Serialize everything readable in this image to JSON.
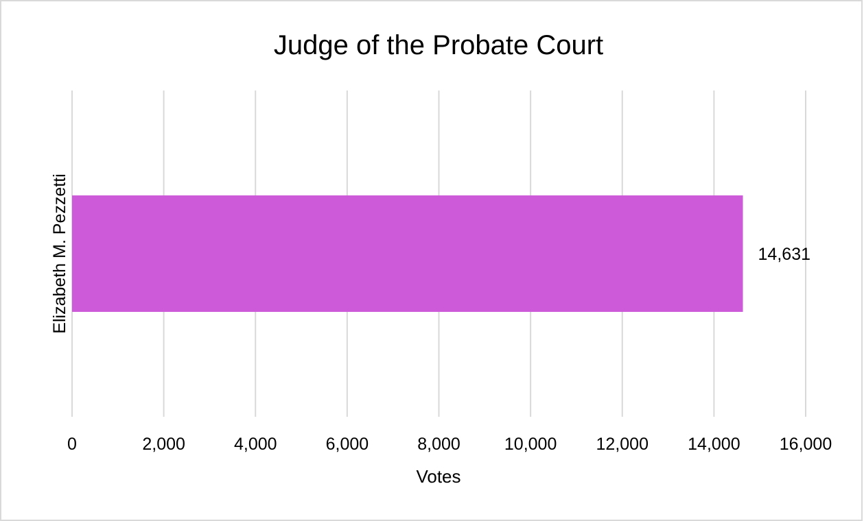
{
  "chart_data": {
    "type": "bar",
    "orientation": "horizontal",
    "title": "Judge of the Probate Court",
    "xlabel": "Votes",
    "ylabel": "",
    "categories": [
      "Elizabeth M. Pezzetti"
    ],
    "series": [
      {
        "values": [
          14631
        ],
        "data_labels": [
          "14,631"
        ]
      }
    ],
    "xlim": [
      0,
      16000
    ],
    "x_ticks": [
      0,
      2000,
      4000,
      6000,
      8000,
      10000,
      12000,
      14000,
      16000
    ],
    "x_tick_labels": [
      "0",
      "2,000",
      "4,000",
      "6,000",
      "8,000",
      "10,000",
      "12,000",
      "14,000",
      "16,000"
    ],
    "grid": "vertical",
    "legend": "none",
    "colors": {
      "bar": "#cd5bd9",
      "grid": "#d9d9d9",
      "border": "#d9d9d9"
    }
  }
}
